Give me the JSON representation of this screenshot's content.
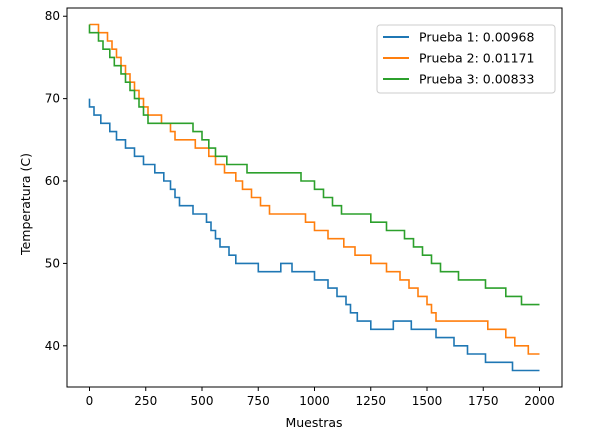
{
  "chart_data": {
    "type": "line",
    "title": "",
    "xlabel": "Muestras",
    "ylabel": "Temperatura (C)",
    "xlim": [
      -100,
      2100
    ],
    "ylim": [
      35,
      81
    ],
    "xticks": [
      0,
      250,
      500,
      750,
      1000,
      1250,
      1500,
      1750,
      2000
    ],
    "yticks": [
      40,
      50,
      60,
      70,
      80
    ],
    "legend_position": "top-right",
    "grid": false,
    "series": [
      {
        "name": "Prueba 1: 0.00968",
        "color": "#1f77b4",
        "points": [
          [
            0,
            70
          ],
          [
            0,
            69
          ],
          [
            20,
            69
          ],
          [
            20,
            68
          ],
          [
            50,
            68
          ],
          [
            50,
            67
          ],
          [
            90,
            67
          ],
          [
            90,
            66
          ],
          [
            120,
            66
          ],
          [
            120,
            65
          ],
          [
            160,
            65
          ],
          [
            160,
            64
          ],
          [
            200,
            64
          ],
          [
            200,
            63
          ],
          [
            240,
            63
          ],
          [
            240,
            62
          ],
          [
            290,
            62
          ],
          [
            290,
            61
          ],
          [
            330,
            61
          ],
          [
            330,
            60
          ],
          [
            360,
            60
          ],
          [
            360,
            59
          ],
          [
            380,
            59
          ],
          [
            380,
            58
          ],
          [
            400,
            58
          ],
          [
            400,
            57
          ],
          [
            460,
            57
          ],
          [
            460,
            56
          ],
          [
            520,
            56
          ],
          [
            520,
            55
          ],
          [
            540,
            55
          ],
          [
            540,
            54
          ],
          [
            560,
            54
          ],
          [
            560,
            53
          ],
          [
            580,
            53
          ],
          [
            580,
            52
          ],
          [
            620,
            52
          ],
          [
            620,
            51
          ],
          [
            650,
            51
          ],
          [
            650,
            50
          ],
          [
            750,
            50
          ],
          [
            750,
            49
          ],
          [
            850,
            49
          ],
          [
            850,
            50
          ],
          [
            900,
            50
          ],
          [
            900,
            49
          ],
          [
            1000,
            49
          ],
          [
            1000,
            48
          ],
          [
            1060,
            48
          ],
          [
            1060,
            47
          ],
          [
            1100,
            47
          ],
          [
            1100,
            46
          ],
          [
            1140,
            46
          ],
          [
            1140,
            45
          ],
          [
            1160,
            45
          ],
          [
            1160,
            44
          ],
          [
            1190,
            44
          ],
          [
            1190,
            43
          ],
          [
            1250,
            43
          ],
          [
            1250,
            42
          ],
          [
            1350,
            42
          ],
          [
            1350,
            43
          ],
          [
            1430,
            43
          ],
          [
            1430,
            42
          ],
          [
            1540,
            42
          ],
          [
            1540,
            41
          ],
          [
            1620,
            41
          ],
          [
            1620,
            40
          ],
          [
            1680,
            40
          ],
          [
            1680,
            39
          ],
          [
            1760,
            39
          ],
          [
            1760,
            38
          ],
          [
            1880,
            38
          ],
          [
            1880,
            37
          ],
          [
            2000,
            37
          ]
        ]
      },
      {
        "name": "Prueba 2: 0.01171",
        "color": "#ff7f0e",
        "points": [
          [
            0,
            79
          ],
          [
            40,
            79
          ],
          [
            40,
            78
          ],
          [
            80,
            78
          ],
          [
            80,
            77
          ],
          [
            100,
            77
          ],
          [
            100,
            76
          ],
          [
            120,
            76
          ],
          [
            120,
            75
          ],
          [
            140,
            75
          ],
          [
            140,
            74
          ],
          [
            160,
            74
          ],
          [
            160,
            73
          ],
          [
            180,
            73
          ],
          [
            180,
            72
          ],
          [
            200,
            72
          ],
          [
            200,
            71
          ],
          [
            220,
            71
          ],
          [
            220,
            70
          ],
          [
            240,
            70
          ],
          [
            240,
            69
          ],
          [
            260,
            69
          ],
          [
            260,
            68
          ],
          [
            320,
            68
          ],
          [
            320,
            67
          ],
          [
            360,
            67
          ],
          [
            360,
            66
          ],
          [
            380,
            66
          ],
          [
            380,
            65
          ],
          [
            470,
            65
          ],
          [
            470,
            64
          ],
          [
            530,
            64
          ],
          [
            530,
            63
          ],
          [
            560,
            63
          ],
          [
            560,
            62
          ],
          [
            600,
            62
          ],
          [
            600,
            61
          ],
          [
            650,
            61
          ],
          [
            650,
            60
          ],
          [
            680,
            60
          ],
          [
            680,
            59
          ],
          [
            720,
            59
          ],
          [
            720,
            58
          ],
          [
            760,
            58
          ],
          [
            760,
            57
          ],
          [
            800,
            57
          ],
          [
            800,
            56
          ],
          [
            960,
            56
          ],
          [
            960,
            55
          ],
          [
            1000,
            55
          ],
          [
            1000,
            54
          ],
          [
            1060,
            54
          ],
          [
            1060,
            53
          ],
          [
            1130,
            53
          ],
          [
            1130,
            52
          ],
          [
            1180,
            52
          ],
          [
            1180,
            51
          ],
          [
            1250,
            51
          ],
          [
            1250,
            50
          ],
          [
            1320,
            50
          ],
          [
            1320,
            49
          ],
          [
            1380,
            49
          ],
          [
            1380,
            48
          ],
          [
            1420,
            48
          ],
          [
            1420,
            47
          ],
          [
            1460,
            47
          ],
          [
            1460,
            46
          ],
          [
            1500,
            46
          ],
          [
            1500,
            45
          ],
          [
            1520,
            45
          ],
          [
            1520,
            44
          ],
          [
            1540,
            44
          ],
          [
            1540,
            43
          ],
          [
            1770,
            43
          ],
          [
            1770,
            42
          ],
          [
            1850,
            42
          ],
          [
            1850,
            41
          ],
          [
            1890,
            41
          ],
          [
            1890,
            40
          ],
          [
            1950,
            40
          ],
          [
            1950,
            39
          ],
          [
            2000,
            39
          ]
        ]
      },
      {
        "name": "Prueba 3: 0.00833",
        "color": "#2ca02c",
        "points": [
          [
            0,
            79
          ],
          [
            0,
            78
          ],
          [
            40,
            78
          ],
          [
            40,
            77
          ],
          [
            60,
            77
          ],
          [
            60,
            76
          ],
          [
            90,
            76
          ],
          [
            90,
            75
          ],
          [
            110,
            75
          ],
          [
            110,
            74
          ],
          [
            140,
            74
          ],
          [
            140,
            73
          ],
          [
            160,
            73
          ],
          [
            160,
            72
          ],
          [
            180,
            72
          ],
          [
            180,
            71
          ],
          [
            200,
            71
          ],
          [
            200,
            70
          ],
          [
            220,
            70
          ],
          [
            220,
            69
          ],
          [
            240,
            69
          ],
          [
            240,
            68
          ],
          [
            260,
            68
          ],
          [
            260,
            67
          ],
          [
            460,
            67
          ],
          [
            460,
            66
          ],
          [
            500,
            66
          ],
          [
            500,
            65
          ],
          [
            530,
            65
          ],
          [
            530,
            64
          ],
          [
            560,
            64
          ],
          [
            560,
            63
          ],
          [
            610,
            63
          ],
          [
            610,
            62
          ],
          [
            700,
            62
          ],
          [
            700,
            61
          ],
          [
            940,
            61
          ],
          [
            940,
            60
          ],
          [
            1000,
            60
          ],
          [
            1000,
            59
          ],
          [
            1040,
            59
          ],
          [
            1040,
            58
          ],
          [
            1080,
            58
          ],
          [
            1080,
            57
          ],
          [
            1120,
            57
          ],
          [
            1120,
            56
          ],
          [
            1250,
            56
          ],
          [
            1250,
            55
          ],
          [
            1320,
            55
          ],
          [
            1320,
            54
          ],
          [
            1400,
            54
          ],
          [
            1400,
            53
          ],
          [
            1440,
            53
          ],
          [
            1440,
            52
          ],
          [
            1480,
            52
          ],
          [
            1480,
            51
          ],
          [
            1520,
            51
          ],
          [
            1520,
            50
          ],
          [
            1560,
            50
          ],
          [
            1560,
            49
          ],
          [
            1640,
            49
          ],
          [
            1640,
            48
          ],
          [
            1760,
            48
          ],
          [
            1760,
            47
          ],
          [
            1850,
            47
          ],
          [
            1850,
            46
          ],
          [
            1920,
            46
          ],
          [
            1920,
            45
          ],
          [
            2000,
            45
          ]
        ]
      }
    ]
  }
}
